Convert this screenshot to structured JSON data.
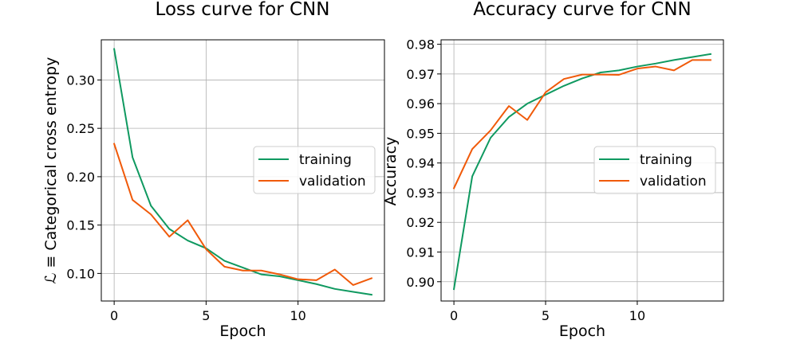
{
  "colors": {
    "training": "#0f9960",
    "validation": "#f05a0a",
    "grid": "#b0b0b0",
    "frame": "#000000"
  },
  "chart_data": [
    {
      "type": "line",
      "title": "Loss curve for CNN",
      "xlabel": "Epoch",
      "ylabel": "ℒ ≡ Categorical cross entropy",
      "xlim": [
        -0.7,
        14.7
      ],
      "ylim": [
        0.0715,
        0.3415
      ],
      "xticks": [
        0,
        5,
        10
      ],
      "xtick_labels": [
        "0",
        "5",
        "10"
      ],
      "yticks": [
        0.1,
        0.15,
        0.2,
        0.25,
        0.3
      ],
      "ytick_labels": [
        "0.10",
        "0.15",
        "0.20",
        "0.25",
        "0.30"
      ],
      "grid": true,
      "legend_position": "center-right",
      "x": [
        0,
        1,
        2,
        3,
        4,
        5,
        6,
        7,
        8,
        9,
        10,
        11,
        12,
        13,
        14
      ],
      "series": [
        {
          "name": "training",
          "color": "#0f9960",
          "values": [
            0.332,
            0.22,
            0.17,
            0.146,
            0.134,
            0.126,
            0.113,
            0.106,
            0.099,
            0.097,
            0.093,
            0.089,
            0.084,
            0.081,
            0.078
          ]
        },
        {
          "name": "validation",
          "color": "#f05a0a",
          "values": [
            0.234,
            0.176,
            0.161,
            0.138,
            0.155,
            0.125,
            0.107,
            0.103,
            0.103,
            0.099,
            0.094,
            0.093,
            0.104,
            0.088,
            0.095
          ]
        }
      ]
    },
    {
      "type": "line",
      "title": "Accuracy curve for CNN",
      "xlabel": "Epoch",
      "ylabel": "Accuracy",
      "xlim": [
        -0.7,
        14.7
      ],
      "ylim": [
        0.8935,
        0.9815
      ],
      "xticks": [
        0,
        5,
        10
      ],
      "xtick_labels": [
        "0",
        "5",
        "10"
      ],
      "yticks": [
        0.9,
        0.91,
        0.92,
        0.93,
        0.94,
        0.95,
        0.96,
        0.97,
        0.98
      ],
      "ytick_labels": [
        "0.90",
        "0.91",
        "0.92",
        "0.93",
        "0.94",
        "0.95",
        "0.96",
        "0.97",
        "0.98"
      ],
      "grid": true,
      "legend_position": "center-right",
      "x": [
        0,
        1,
        2,
        3,
        4,
        5,
        6,
        7,
        8,
        9,
        10,
        11,
        12,
        13,
        14
      ],
      "series": [
        {
          "name": "training",
          "color": "#0f9960",
          "values": [
            0.8975,
            0.9355,
            0.9485,
            0.9555,
            0.96,
            0.963,
            0.966,
            0.9685,
            0.9705,
            0.9712,
            0.9725,
            0.9735,
            0.9747,
            0.9757,
            0.9767
          ]
        },
        {
          "name": "validation",
          "color": "#f05a0a",
          "values": [
            0.9315,
            0.9447,
            0.951,
            0.9592,
            0.9545,
            0.9638,
            0.9683,
            0.9698,
            0.9698,
            0.9697,
            0.9718,
            0.9725,
            0.9712,
            0.9747,
            0.9747
          ]
        }
      ]
    }
  ]
}
